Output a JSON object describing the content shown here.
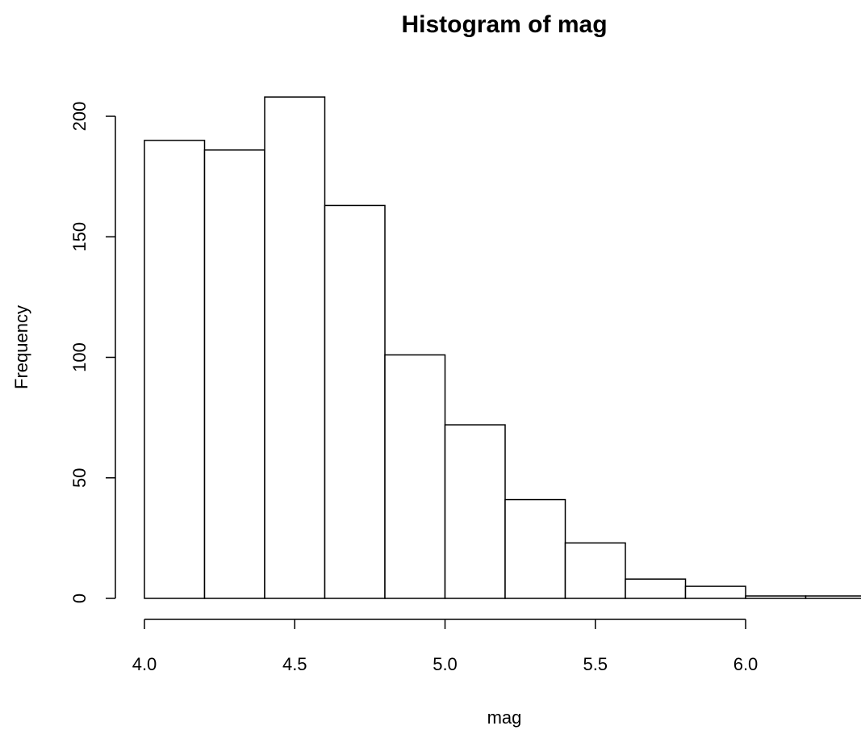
{
  "chart_data": {
    "type": "bar",
    "title": "Histogram of mag",
    "xlabel": "mag",
    "ylabel": "Frequency",
    "bins": [
      [
        4.0,
        4.2
      ],
      [
        4.2,
        4.4
      ],
      [
        4.4,
        4.6
      ],
      [
        4.6,
        4.8
      ],
      [
        4.8,
        5.0
      ],
      [
        5.0,
        5.2
      ],
      [
        5.2,
        5.4
      ],
      [
        5.4,
        5.6
      ],
      [
        5.6,
        5.8
      ],
      [
        5.8,
        6.0
      ],
      [
        6.0,
        6.2
      ],
      [
        6.2,
        6.4
      ]
    ],
    "values": [
      190,
      186,
      208,
      163,
      101,
      72,
      41,
      23,
      8,
      5,
      1,
      1
    ],
    "xticks": [
      "4.0",
      "4.5",
      "5.0",
      "5.5",
      "6.0"
    ],
    "yticks": [
      "0",
      "50",
      "100",
      "150",
      "200"
    ],
    "xlim": [
      4.0,
      6.4
    ],
    "ylim": [
      0,
      210
    ],
    "grid": false,
    "legend": "none"
  }
}
